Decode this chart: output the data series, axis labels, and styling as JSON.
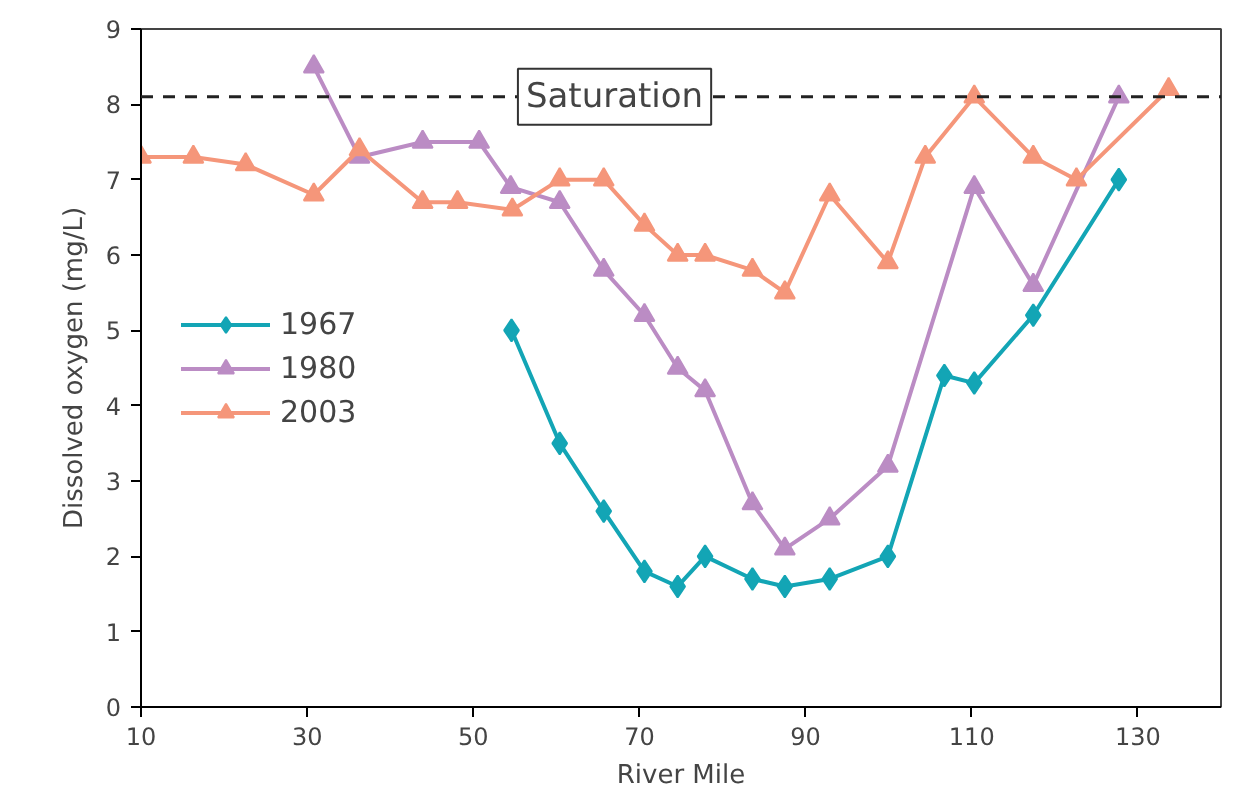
{
  "chart_data": {
    "type": "line",
    "xlabel": "River Mile",
    "ylabel": "Dissolved oxygen (mg/L)",
    "xlim": [
      10,
      140
    ],
    "ylim": [
      0,
      9
    ],
    "xticks": [
      10,
      30,
      50,
      70,
      90,
      110,
      130
    ],
    "yticks": [
      0,
      1,
      2,
      3,
      4,
      5,
      6,
      7,
      8,
      9
    ],
    "grid": false,
    "legend": "left",
    "line_style": "solid",
    "ref_lines": [
      {
        "axis": "y",
        "value": 8.1,
        "label": "Saturation",
        "color": "#222222",
        "line_style": "dashed"
      }
    ],
    "series": [
      {
        "name": "1967",
        "color": "#13a5b5",
        "marker": "diamond",
        "x": [
          54.6,
          60.4,
          65.7,
          70.6,
          74.6,
          77.9,
          83.6,
          87.5,
          92.9,
          99.9,
          106.7,
          110.3,
          117.4,
          127.7
        ],
        "values": [
          5.0,
          3.5,
          2.6,
          1.8,
          1.6,
          2.0,
          1.7,
          1.6,
          1.7,
          2.0,
          4.4,
          4.3,
          5.2,
          7.0
        ]
      },
      {
        "name": "1980",
        "color": "#bb8cc4",
        "marker": "triangle",
        "x": [
          30.8,
          36.3,
          43.9,
          50.7,
          54.5,
          60.4,
          65.7,
          70.6,
          74.6,
          77.9,
          83.6,
          87.5,
          92.9,
          99.9,
          110.3,
          117.4,
          127.7
        ],
        "values": [
          8.5,
          7.3,
          7.5,
          7.5,
          6.9,
          6.7,
          5.8,
          5.2,
          4.5,
          4.2,
          2.7,
          2.1,
          2.5,
          3.2,
          6.9,
          5.6,
          8.1
        ]
      },
      {
        "name": "2003",
        "color": "#f5967a",
        "marker": "triangle",
        "x": [
          10,
          16.3,
          22.6,
          30.8,
          36.3,
          43.9,
          48.1,
          54.7,
          60.4,
          65.7,
          70.6,
          74.6,
          77.9,
          83.6,
          87.5,
          92.9,
          99.9,
          104.4,
          110.3,
          117.4,
          122.6,
          133.7
        ],
        "values": [
          7.3,
          7.3,
          7.2,
          6.8,
          7.4,
          6.7,
          6.7,
          6.6,
          7.0,
          7.0,
          6.4,
          6.0,
          6.0,
          5.8,
          5.5,
          6.8,
          5.9,
          7.3,
          8.1,
          7.3,
          7.0,
          8.2
        ]
      }
    ]
  }
}
